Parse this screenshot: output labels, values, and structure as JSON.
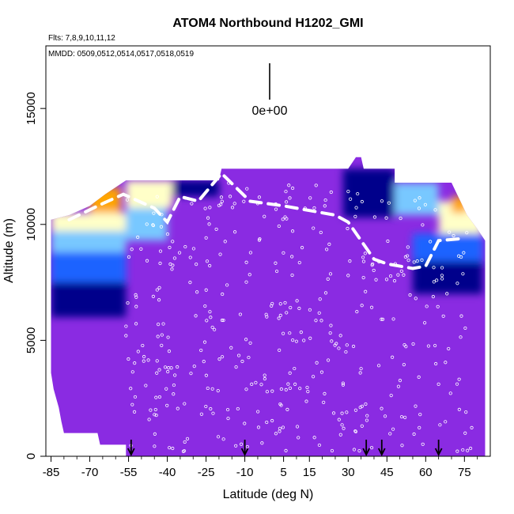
{
  "chart_data": {
    "type": "heatmap",
    "title": "ATOM4 Northbound H1202_GMI",
    "flights_note": "Flts: 7,8,9,10,11,12",
    "dates_note": "MMDD: 0509,0512,0514,0517,0518,0519",
    "scale_label": "0e+00",
    "xlabel": "Latitude (deg N)",
    "ylabel": "Altitude (m)",
    "xlim": [
      -87,
      85
    ],
    "ylim": [
      0,
      17700
    ],
    "x_ticks": [
      -85,
      -70,
      -55,
      -40,
      -25,
      -10,
      5,
      15,
      30,
      45,
      60,
      75
    ],
    "y_ticks": [
      0,
      5000,
      10000,
      15000
    ],
    "arrow_latitudes": [
      -54,
      -10,
      37,
      43,
      65
    ],
    "colors": {
      "background_fill": "#8a2be2",
      "deep_blue": "#00008b",
      "mid_blue": "#1e64ff",
      "light_blue": "#78c8ff",
      "pale_yellow": "#ffffc8",
      "orange": "#ffa500",
      "red_orange": "#ff5a00"
    },
    "upper_boundary": [
      {
        "lat": -85,
        "alt": 10200
      },
      {
        "lat": -78,
        "alt": 10400
      },
      {
        "lat": -70,
        "alt": 10800
      },
      {
        "lat": -64,
        "alt": 11300
      },
      {
        "lat": -56,
        "alt": 11900
      },
      {
        "lat": -45,
        "alt": 11900
      },
      {
        "lat": -20,
        "alt": 11900
      },
      {
        "lat": -19,
        "alt": 12400
      },
      {
        "lat": 30,
        "alt": 12400
      },
      {
        "lat": 33,
        "alt": 12900
      },
      {
        "lat": 35,
        "alt": 12900
      },
      {
        "lat": 36,
        "alt": 12400
      },
      {
        "lat": 48,
        "alt": 12400
      },
      {
        "lat": 48,
        "alt": 11800
      },
      {
        "lat": 70,
        "alt": 11800
      },
      {
        "lat": 76,
        "alt": 10400
      },
      {
        "lat": 80,
        "alt": 9800
      },
      {
        "lat": 83,
        "alt": 9300
      }
    ],
    "lower_boundary": [
      {
        "lat": -85,
        "alt": 3600
      },
      {
        "lat": -84,
        "alt": 2900
      },
      {
        "lat": -83,
        "alt": 2500
      },
      {
        "lat": -82,
        "alt": 2100
      },
      {
        "lat": -81,
        "alt": 1500
      },
      {
        "lat": -80,
        "alt": 1000
      },
      {
        "lat": -67,
        "alt": 1000
      },
      {
        "lat": -66,
        "alt": 500
      },
      {
        "lat": -56,
        "alt": 500
      },
      {
        "lat": -56,
        "alt": 0
      }
    ],
    "ozone_bands": [
      {
        "lat_from": -85,
        "lat_to": -56,
        "alt_from": 9700,
        "alt_to": 10500,
        "color_key": "pale_yellow"
      },
      {
        "lat_from": -70,
        "lat_to": -58,
        "alt_from": 10500,
        "alt_to": 11600,
        "color_key": "orange"
      },
      {
        "lat_from": -85,
        "lat_to": -56,
        "alt_from": 8800,
        "alt_to": 9700,
        "color_key": "light_blue"
      },
      {
        "lat_from": -85,
        "lat_to": -56,
        "alt_from": 7500,
        "alt_to": 8800,
        "color_key": "mid_blue"
      },
      {
        "lat_from": -85,
        "lat_to": -56,
        "alt_from": 6000,
        "alt_to": 7500,
        "color_key": "deep_blue"
      },
      {
        "lat_from": -56,
        "lat_to": -38,
        "alt_from": 10700,
        "alt_to": 11900,
        "color_key": "pale_yellow"
      },
      {
        "lat_from": -38,
        "lat_to": -20,
        "alt_from": 11200,
        "alt_to": 11900,
        "color_key": "deep_blue"
      },
      {
        "lat_from": -56,
        "lat_to": -40,
        "alt_from": 9300,
        "alt_to": 10700,
        "color_key": "light_blue"
      },
      {
        "lat_from": 28,
        "lat_to": 48,
        "alt_from": 10300,
        "alt_to": 12400,
        "color_key": "deep_blue"
      },
      {
        "lat_from": 48,
        "lat_to": 65,
        "alt_from": 10400,
        "alt_to": 11800,
        "color_key": "light_blue"
      },
      {
        "lat_from": 65,
        "lat_to": 82,
        "alt_from": 9600,
        "alt_to": 11000,
        "color_key": "pale_yellow"
      },
      {
        "lat_from": 70,
        "lat_to": 76,
        "alt_from": 10500,
        "alt_to": 11200,
        "color_key": "orange"
      },
      {
        "lat_from": 55,
        "lat_to": 82,
        "alt_from": 8400,
        "alt_to": 9600,
        "color_key": "mid_blue"
      },
      {
        "lat_from": 55,
        "lat_to": 82,
        "alt_from": 7000,
        "alt_to": 8400,
        "color_key": "deep_blue"
      }
    ],
    "flight_track": [
      {
        "lat": -78,
        "alt": 10200
      },
      {
        "lat": -65,
        "alt": 10900
      },
      {
        "lat": -57,
        "alt": 11300
      },
      {
        "lat": -45,
        "alt": 10700
      },
      {
        "lat": -40,
        "alt": 10100
      },
      {
        "lat": -35,
        "alt": 11200
      },
      {
        "lat": -28,
        "alt": 11000
      },
      {
        "lat": -19,
        "alt": 12200
      },
      {
        "lat": -8,
        "alt": 11000
      },
      {
        "lat": 5,
        "alt": 10800
      },
      {
        "lat": 15,
        "alt": 10600
      },
      {
        "lat": 25,
        "alt": 10400
      },
      {
        "lat": 30,
        "alt": 10100
      },
      {
        "lat": 40,
        "alt": 8500
      },
      {
        "lat": 45,
        "alt": 8300
      },
      {
        "lat": 55,
        "alt": 8100
      },
      {
        "lat": 60,
        "alt": 8200
      },
      {
        "lat": 65,
        "alt": 9300
      },
      {
        "lat": 75,
        "alt": 9400
      }
    ]
  }
}
